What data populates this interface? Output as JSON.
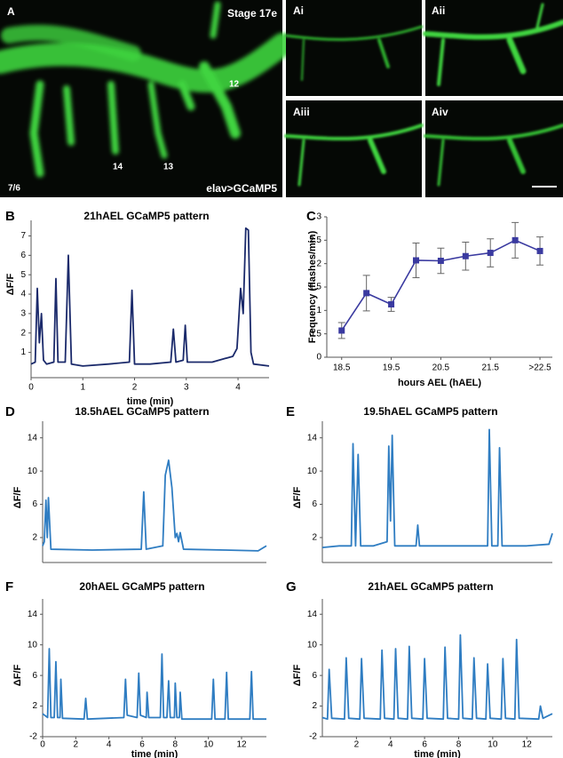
{
  "panel_a": {
    "label": "A",
    "stage": "Stage 17e",
    "cells": [
      "12",
      "14",
      "13"
    ],
    "segment": "7/6",
    "genotype": "elav>GCaMP5",
    "insets": [
      "Ai",
      "Aii",
      "Aiii",
      "Aiv"
    ]
  },
  "chart_data": [
    {
      "type": "line",
      "panel": "B",
      "title": "21hAEL GCaMP5 pattern",
      "y_label": "ΔF/F",
      "x_label": "time (min)",
      "color": "#1b2a6b",
      "x": [
        0,
        0.08,
        0.12,
        0.16,
        0.2,
        0.24,
        0.3,
        0.44,
        0.48,
        0.52,
        0.66,
        0.72,
        0.78,
        1,
        1.5,
        1.9,
        1.95,
        2.0,
        2.3,
        2.7,
        2.75,
        2.8,
        2.94,
        2.98,
        3.02,
        3.5,
        3.9,
        3.98,
        4.05,
        4.1,
        4.15,
        4.2,
        4.25,
        4.3,
        4.6
      ],
      "values": [
        0.4,
        0.5,
        4.3,
        1.5,
        3.0,
        0.6,
        0.4,
        0.5,
        4.8,
        0.5,
        0.5,
        6.0,
        0.4,
        0.3,
        0.4,
        0.5,
        4.2,
        0.4,
        0.4,
        0.5,
        2.2,
        0.5,
        0.6,
        2.4,
        0.5,
        0.5,
        0.8,
        1.2,
        4.3,
        3,
        7.4,
        7.3,
        1,
        0.4,
        0.3
      ],
      "xlim": [
        0,
        4.6
      ],
      "xticks": [
        0,
        1,
        2,
        3,
        4
      ],
      "ylim": [
        -0.3,
        7.8
      ],
      "yticks": [
        1,
        2,
        3,
        4,
        5,
        6,
        7
      ]
    },
    {
      "type": "errorbar",
      "panel": "C",
      "y_label": "Frequency (flashes/min)",
      "x_label": "hours AEL (hAEL)",
      "color": "#3a3aa0",
      "marker": "square",
      "x": [
        18.5,
        19,
        19.5,
        20,
        20.5,
        21,
        21.5,
        22,
        22.5
      ],
      "values": [
        0.57,
        1.37,
        1.13,
        2.07,
        2.06,
        2.16,
        2.23,
        2.5,
        2.27
      ],
      "errors": [
        0.17,
        0.38,
        0.15,
        0.37,
        0.27,
        0.3,
        0.3,
        0.38,
        0.3
      ],
      "xlim": [
        18.2,
        22.75
      ],
      "xticks": [
        18.5,
        19.5,
        20.5,
        21.5,
        {
          "value": 22.5,
          "label": ">22.5"
        }
      ],
      "ylim": [
        0,
        3
      ],
      "yticks": [
        0,
        0.5,
        1,
        1.5,
        2,
        2.5,
        3
      ]
    },
    {
      "type": "line",
      "panel": "D",
      "title": "18.5hAEL GCaMP5 pattern",
      "y_label": "ΔF/F",
      "color": "#2f7dc2",
      "x": [
        0,
        0.1,
        0.2,
        0.28,
        0.35,
        0.5,
        3,
        5.95,
        6.1,
        6.25,
        7.25,
        7.4,
        7.6,
        7.8,
        8.0,
        8.1,
        8.2,
        8.3,
        8.5,
        11,
        13,
        13.5
      ],
      "values": [
        1,
        1.5,
        6.5,
        2,
        6.8,
        0.6,
        0.5,
        0.6,
        7.5,
        0.6,
        1,
        9.5,
        11.3,
        8,
        2,
        2.5,
        1.5,
        2.6,
        0.6,
        0.5,
        0.4,
        1
      ],
      "xlim": [
        0,
        13.5
      ],
      "ylim": [
        -1,
        16
      ],
      "yticks": [
        2,
        6,
        10,
        14
      ]
    },
    {
      "type": "line",
      "panel": "E",
      "title": "19.5hAEL GCaMP5 pattern",
      "y_label": "ΔF/F",
      "color": "#2f7dc2",
      "x": [
        0,
        1,
        1.7,
        1.8,
        1.95,
        2.1,
        2.25,
        3,
        3.8,
        3.9,
        4.0,
        4.1,
        4.25,
        5.5,
        5.6,
        5.7,
        7,
        9.7,
        9.8,
        9.95,
        10.3,
        10.4,
        10.55,
        12,
        13.3,
        13.5
      ],
      "values": [
        0.8,
        1,
        1,
        13.3,
        1,
        12,
        1,
        1,
        1.5,
        13,
        4,
        14.3,
        1,
        1,
        3.5,
        1,
        1,
        1,
        15,
        1,
        1,
        12.8,
        1,
        1,
        1.2,
        2.5
      ],
      "xlim": [
        0,
        13.5
      ],
      "ylim": [
        -1,
        16
      ],
      "yticks": [
        2,
        6,
        10,
        14
      ]
    },
    {
      "type": "line",
      "panel": "F",
      "title": "20hAEL GCaMP5 pattern",
      "y_label": "ΔF/F",
      "x_label": "time (min)",
      "color": "#2f7dc2",
      "x": [
        0,
        0.3,
        0.4,
        0.5,
        0.7,
        0.8,
        0.9,
        1.05,
        1.1,
        1.2,
        2.5,
        2.6,
        2.7,
        4.9,
        5.0,
        5.1,
        5.7,
        5.8,
        5.9,
        6.25,
        6.3,
        6.4,
        7.1,
        7.2,
        7.3,
        7.5,
        7.6,
        7.7,
        7.95,
        8.0,
        8.1,
        8.25,
        8.3,
        8.4,
        10.2,
        10.3,
        10.4,
        11.0,
        11.1,
        11.2,
        12.5,
        12.6,
        12.7,
        13.5
      ],
      "values": [
        1,
        0.5,
        9.5,
        0.5,
        0.5,
        7.8,
        0.5,
        0.5,
        5.5,
        0.4,
        0.3,
        3,
        0.3,
        0.5,
        5.5,
        0.8,
        0.5,
        6.3,
        0.8,
        0.5,
        3.8,
        0.5,
        0.5,
        8.8,
        0.5,
        0.5,
        5.3,
        0.5,
        0.5,
        5.0,
        0.5,
        0.5,
        3.8,
        0.3,
        0.3,
        5.5,
        0.3,
        0.3,
        6.4,
        0.3,
        0.3,
        6.5,
        0.3,
        0.3
      ],
      "xlim": [
        0,
        13.5
      ],
      "xticks": [
        0,
        2,
        4,
        6,
        8,
        10,
        12
      ],
      "ylim": [
        -2,
        16
      ],
      "yticks": [
        -2,
        2,
        6,
        10,
        14
      ]
    },
    {
      "type": "line",
      "panel": "G",
      "title": "21hAEL GCaMP5 pattern",
      "y_label": "ΔF/F",
      "x_label": "time (min)",
      "color": "#2f7dc2",
      "x": [
        0,
        0.3,
        0.4,
        0.55,
        1.3,
        1.4,
        1.55,
        2.2,
        2.3,
        2.45,
        3.4,
        3.5,
        3.65,
        4.2,
        4.3,
        4.45,
        5.0,
        5.1,
        5.25,
        5.9,
        6.0,
        6.15,
        7.1,
        7.2,
        7.35,
        8.0,
        8.1,
        8.25,
        8.8,
        8.9,
        9.05,
        9.6,
        9.7,
        9.85,
        10.5,
        10.6,
        10.75,
        11.3,
        11.4,
        11.55,
        12.7,
        12.8,
        12.95,
        13.5
      ],
      "values": [
        0.5,
        0.3,
        6.8,
        0.4,
        0.3,
        8.3,
        0.4,
        0.3,
        8.2,
        0.4,
        0.3,
        9.3,
        0.4,
        0.3,
        9.5,
        0.4,
        0.3,
        9.8,
        0.4,
        0.3,
        8.2,
        0.4,
        0.3,
        9.7,
        0.4,
        0.3,
        11.3,
        0.4,
        0.3,
        8.3,
        0.4,
        0.3,
        7.5,
        0.4,
        0.3,
        8.2,
        0.4,
        0.3,
        10.7,
        0.4,
        0.3,
        2,
        0.4,
        1
      ],
      "xlim": [
        0,
        13.5
      ],
      "xticks": [
        2,
        4,
        6,
        8,
        10,
        12
      ],
      "ylim": [
        -2,
        16
      ],
      "yticks": [
        -2,
        2,
        6,
        10,
        14
      ]
    }
  ]
}
